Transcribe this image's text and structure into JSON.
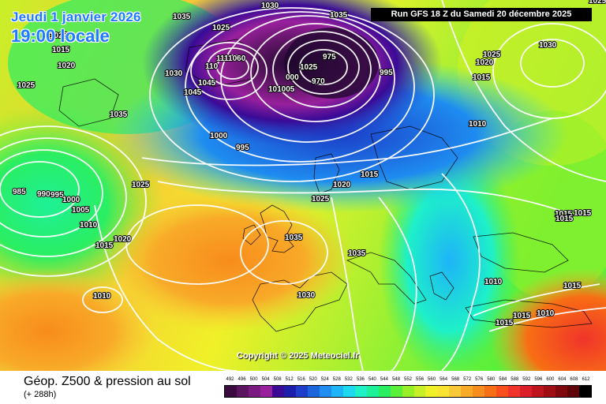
{
  "header": {
    "date_text": "Jeudi 1 janvier 2026",
    "time_text": "19:00 locale",
    "run_text": "Run GFS 18 Z du Samedi 20 décembre 2025"
  },
  "copyright": "Copyright © 2025 Meteociel.fr",
  "footer": {
    "title": "Géop. Z500 & pression au sol",
    "forecast": "(+ 288h)"
  },
  "legend": {
    "values": [
      "492",
      "496",
      "500",
      "504",
      "508",
      "512",
      "516",
      "520",
      "524",
      "528",
      "532",
      "536",
      "540",
      "544",
      "548",
      "552",
      "556",
      "560",
      "564",
      "568",
      "572",
      "576",
      "580",
      "584",
      "588",
      "592",
      "596",
      "600",
      "604",
      "608",
      "612"
    ],
    "colors": [
      "#3a0a3e",
      "#5a1460",
      "#7a1a80",
      "#98209c",
      "#3a0a96",
      "#1c1eaa",
      "#1c3ec8",
      "#1c64dc",
      "#1e8cf0",
      "#1eb4f8",
      "#1ed8f0",
      "#1ef0c8",
      "#1ef096",
      "#2aee62",
      "#5af03a",
      "#96f028",
      "#c8f028",
      "#f0f028",
      "#f8e430",
      "#f8c836",
      "#f8aa28",
      "#f88c1c",
      "#f86e14",
      "#f8501c",
      "#f0342a",
      "#dc1e2a",
      "#be141e",
      "#9e0e14",
      "#7e080c",
      "#5c0408",
      "#000000"
    ]
  },
  "isobar_labels": [
    "1035",
    "1025",
    "1025",
    "1015",
    "1020",
    "1025",
    "1030",
    "1035",
    "1045",
    "1045",
    "1111060",
    "110",
    "1000",
    "995",
    "1030",
    "1035",
    "1025",
    "975",
    "970",
    "000",
    "101005",
    "995",
    "1025",
    "1030",
    "1015",
    "1020",
    "1025",
    "1010",
    "1015",
    "985",
    "990",
    "995",
    "1000",
    "1005",
    "1025",
    "1010",
    "1015",
    "1020",
    "1010",
    "1035",
    "1030",
    "1035",
    "1020",
    "1025",
    "1015",
    "1015",
    "1015",
    "1010",
    "1010",
    "1015",
    "1015",
    "1015"
  ]
}
